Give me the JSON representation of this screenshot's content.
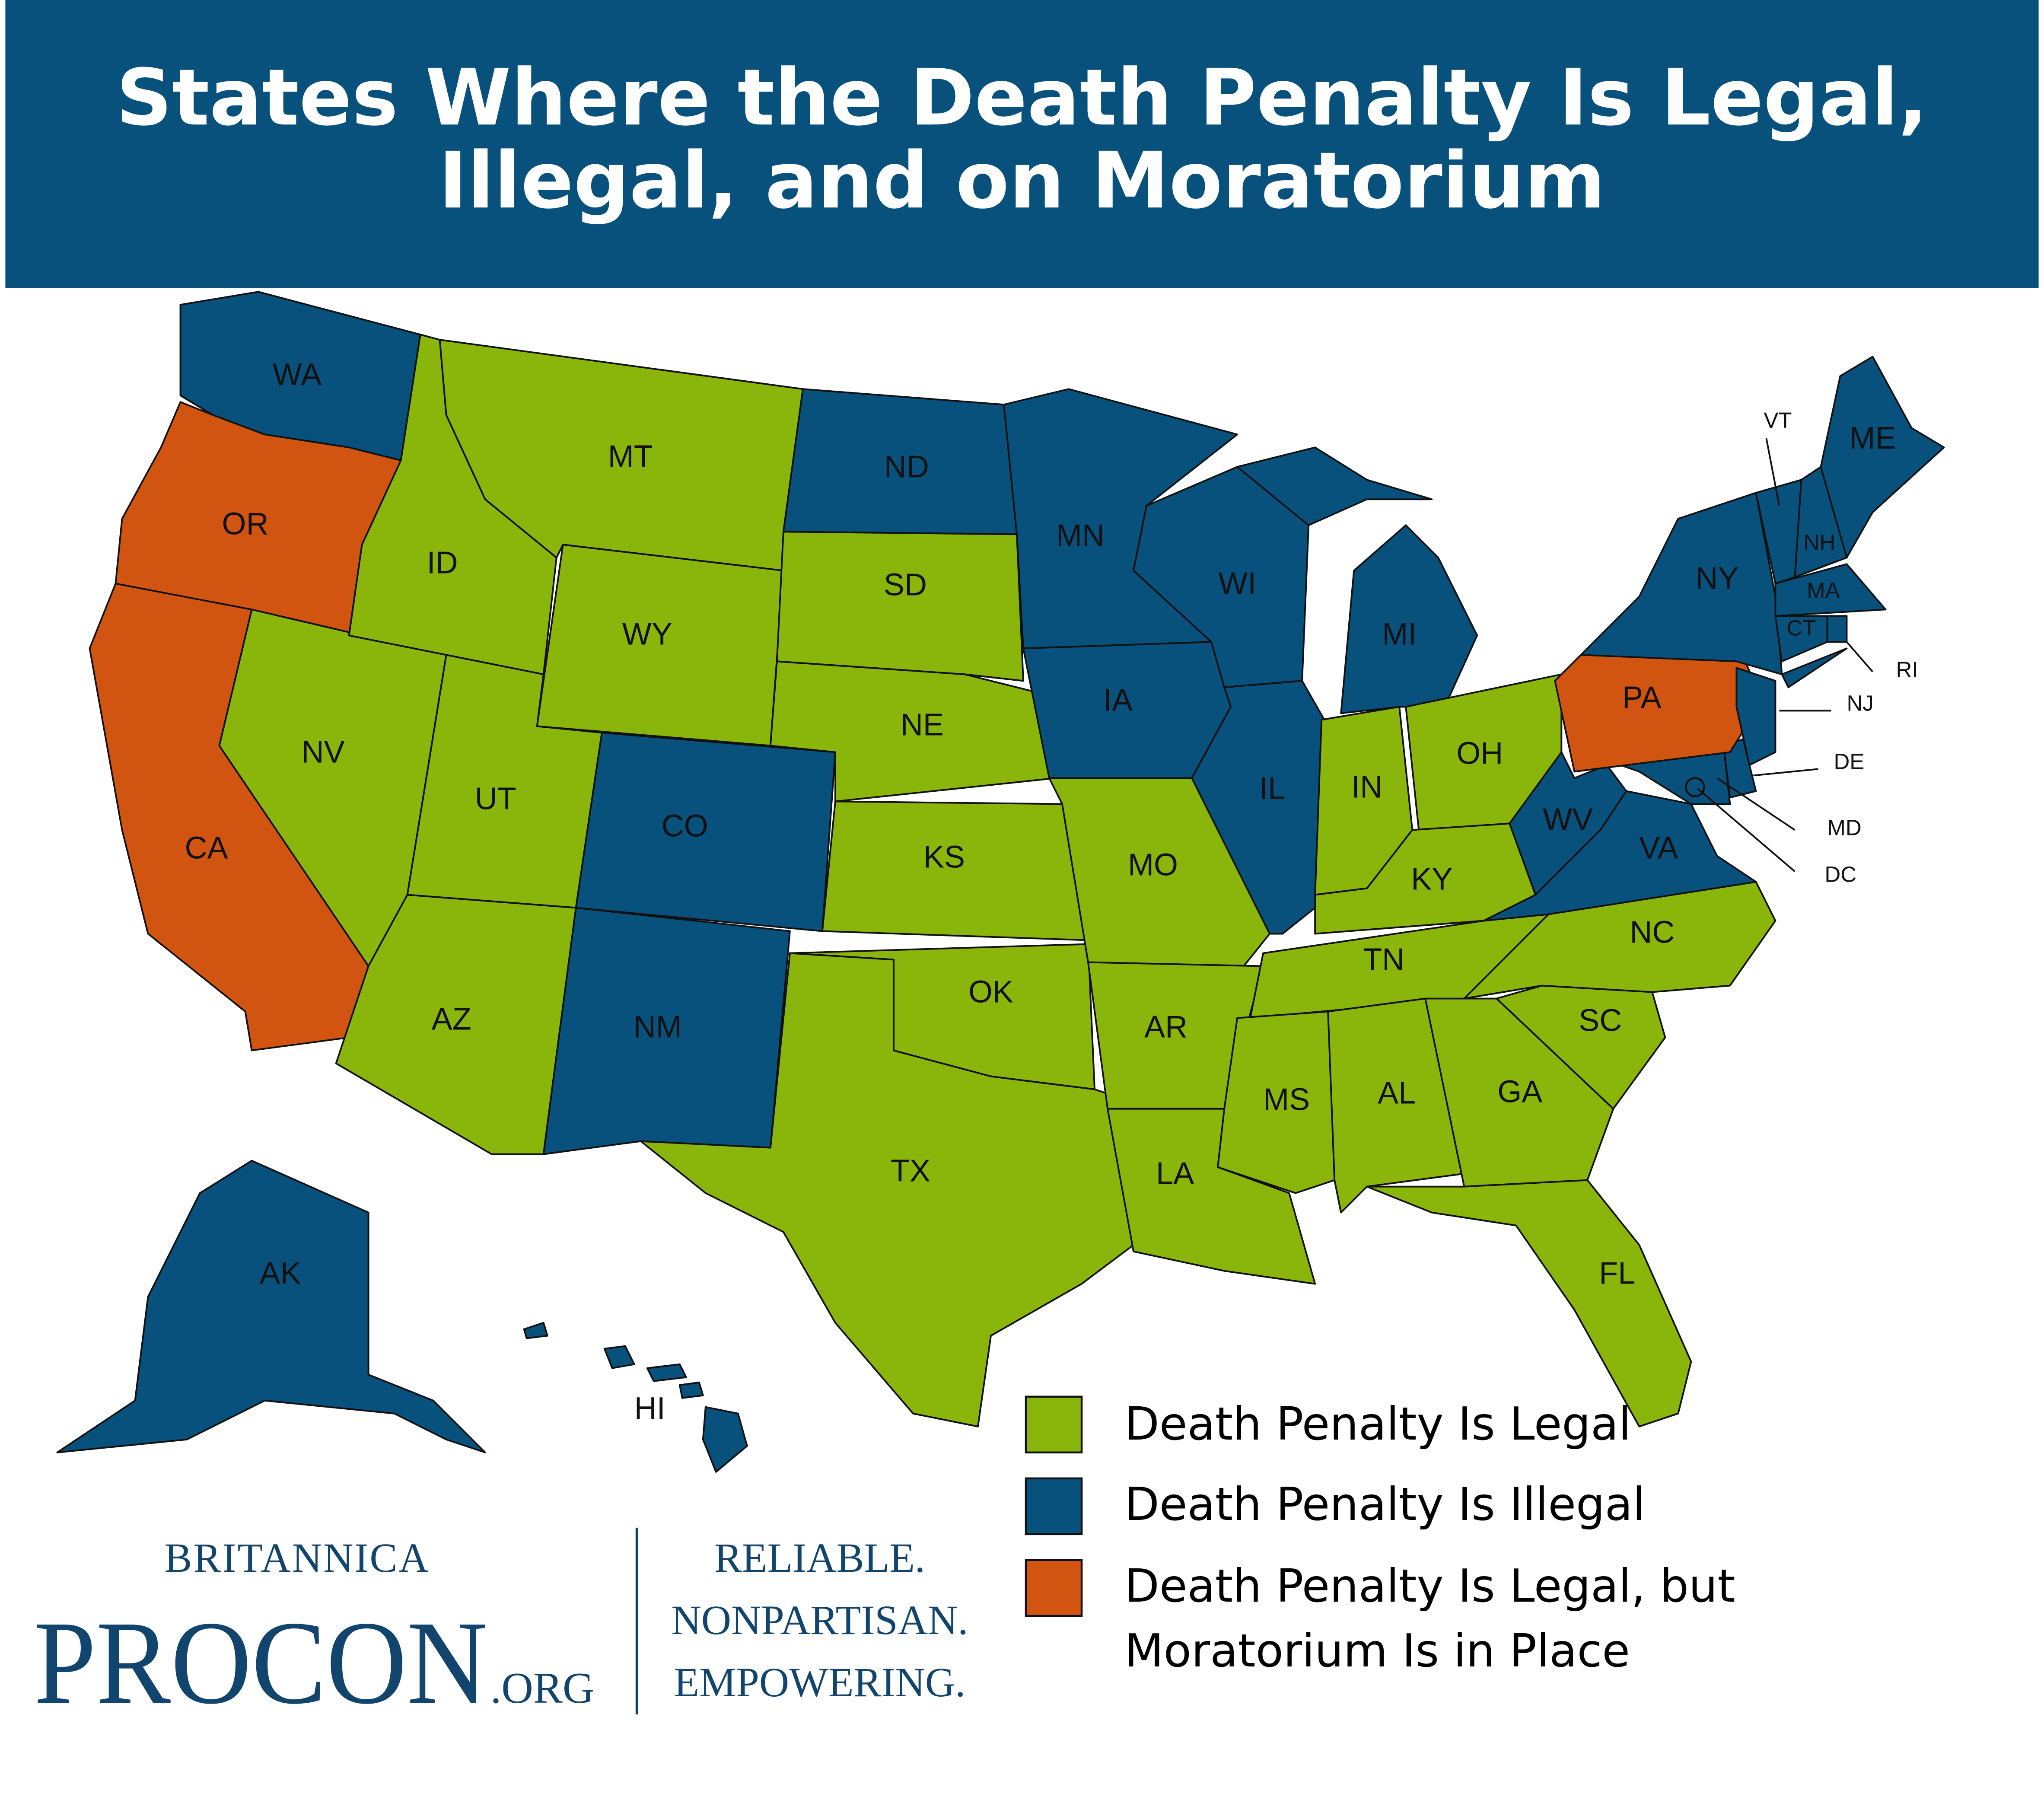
{
  "header": {
    "title_line1": "States Where the Death Penalty Is Legal,",
    "title_line2": "Illegal, and on Moratorium",
    "background": "#08517d"
  },
  "colors": {
    "legal": "#8ab60c",
    "illegal": "#08517d",
    "moratorium": "#d15410"
  },
  "legend": [
    {
      "status": "legal",
      "label": "Death Penalty Is Legal"
    },
    {
      "status": "illegal",
      "label": "Death Penalty Is Illegal"
    },
    {
      "status": "moratorium",
      "label_line1": "Death Penalty Is Legal, but",
      "label_line2": "Moratorium Is in Place"
    }
  ],
  "states": [
    {
      "abbr": "WA",
      "status": "illegal"
    },
    {
      "abbr": "OR",
      "status": "moratorium"
    },
    {
      "abbr": "CA",
      "status": "moratorium"
    },
    {
      "abbr": "NV",
      "status": "legal"
    },
    {
      "abbr": "ID",
      "status": "legal"
    },
    {
      "abbr": "MT",
      "status": "legal"
    },
    {
      "abbr": "WY",
      "status": "legal"
    },
    {
      "abbr": "UT",
      "status": "legal"
    },
    {
      "abbr": "CO",
      "status": "illegal"
    },
    {
      "abbr": "AZ",
      "status": "legal"
    },
    {
      "abbr": "NM",
      "status": "illegal"
    },
    {
      "abbr": "ND",
      "status": "illegal"
    },
    {
      "abbr": "SD",
      "status": "legal"
    },
    {
      "abbr": "NE",
      "status": "legal"
    },
    {
      "abbr": "KS",
      "status": "legal"
    },
    {
      "abbr": "OK",
      "status": "legal"
    },
    {
      "abbr": "TX",
      "status": "legal"
    },
    {
      "abbr": "MN",
      "status": "illegal"
    },
    {
      "abbr": "IA",
      "status": "illegal"
    },
    {
      "abbr": "MO",
      "status": "legal"
    },
    {
      "abbr": "AR",
      "status": "legal"
    },
    {
      "abbr": "LA",
      "status": "legal"
    },
    {
      "abbr": "WI",
      "status": "illegal"
    },
    {
      "abbr": "IL",
      "status": "illegal"
    },
    {
      "abbr": "MI",
      "status": "illegal"
    },
    {
      "abbr": "IN",
      "status": "legal"
    },
    {
      "abbr": "OH",
      "status": "legal"
    },
    {
      "abbr": "KY",
      "status": "legal"
    },
    {
      "abbr": "TN",
      "status": "legal"
    },
    {
      "abbr": "MS",
      "status": "legal"
    },
    {
      "abbr": "AL",
      "status": "legal"
    },
    {
      "abbr": "GA",
      "status": "legal"
    },
    {
      "abbr": "FL",
      "status": "legal"
    },
    {
      "abbr": "SC",
      "status": "legal"
    },
    {
      "abbr": "NC",
      "status": "legal"
    },
    {
      "abbr": "VA",
      "status": "illegal"
    },
    {
      "abbr": "WV",
      "status": "illegal"
    },
    {
      "abbr": "MD",
      "status": "illegal"
    },
    {
      "abbr": "DE",
      "status": "illegal"
    },
    {
      "abbr": "DC",
      "status": "illegal"
    },
    {
      "abbr": "PA",
      "status": "moratorium"
    },
    {
      "abbr": "NJ",
      "status": "illegal"
    },
    {
      "abbr": "NY",
      "status": "illegal"
    },
    {
      "abbr": "VT",
      "status": "illegal"
    },
    {
      "abbr": "NH",
      "status": "illegal"
    },
    {
      "abbr": "ME",
      "status": "illegal"
    },
    {
      "abbr": "MA",
      "status": "illegal"
    },
    {
      "abbr": "CT",
      "status": "illegal"
    },
    {
      "abbr": "RI",
      "status": "illegal"
    },
    {
      "abbr": "AK",
      "status": "illegal"
    },
    {
      "abbr": "HI",
      "status": "illegal"
    }
  ],
  "logo": {
    "britannica": "BRITANNICA",
    "procon": "PROCON",
    "org": ".ORG",
    "tagline": [
      "RELIABLE.",
      "NONPARTISAN.",
      "EMPOWERING."
    ]
  }
}
